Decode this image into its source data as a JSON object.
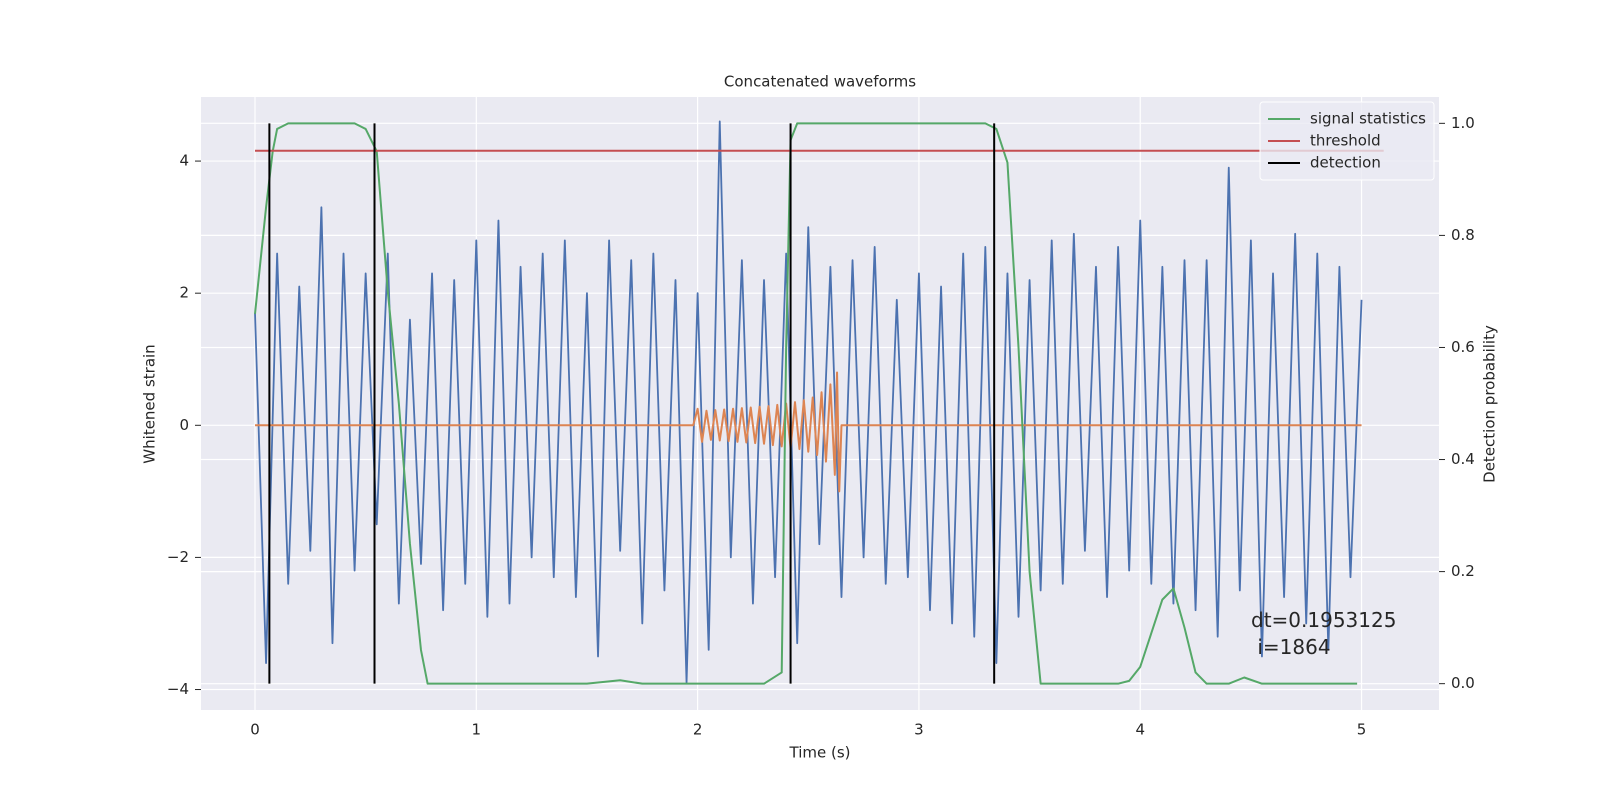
{
  "chart_data": {
    "type": "line",
    "title": "Concatenated waveforms",
    "xlabel": "Time (s)",
    "ylabel": "Whitened strain",
    "y2label": "Detection probability",
    "xlim": [
      -0.244,
      5.35
    ],
    "ylim": [
      -4.31,
      4.97
    ],
    "y2lim": [
      -0.047,
      1.047
    ],
    "xticks": [
      0,
      1,
      2,
      3,
      4,
      5
    ],
    "yticks": [
      {
        "value": -4,
        "label": "−4"
      },
      {
        "value": -2,
        "label": "−2"
      },
      0,
      2,
      4
    ],
    "y2ticks": [
      {
        "value": 0,
        "label": "0.0"
      },
      0.2,
      0.4,
      0.6,
      0.8,
      {
        "value": 1,
        "label": "1.0"
      }
    ],
    "grid": true,
    "legend": "upper right",
    "annotation": [
      "dt=0.1953125",
      " i=1864"
    ],
    "series": [
      {
        "color": "#4c72b0",
        "axis": "y",
        "x": [
          0,
          0.05,
          0.1,
          0.15,
          0.2,
          0.25,
          0.3,
          0.35,
          0.4,
          0.45,
          0.5,
          0.55,
          0.6,
          0.65,
          0.7,
          0.75,
          0.8,
          0.85,
          0.9,
          0.95,
          1,
          1.05,
          1.1,
          1.15,
          1.2,
          1.25,
          1.3,
          1.35,
          1.4,
          1.45,
          1.5,
          1.55,
          1.6,
          1.65,
          1.7,
          1.75,
          1.8,
          1.85,
          1.9,
          1.95,
          2,
          2.05,
          2.1,
          2.15,
          2.2,
          2.25,
          2.3,
          2.35,
          2.4,
          2.45,
          2.5,
          2.55,
          2.6,
          2.65,
          2.7,
          2.75,
          2.8,
          2.85,
          2.9,
          2.95,
          3,
          3.05,
          3.1,
          3.15,
          3.2,
          3.25,
          3.3,
          3.35,
          3.4,
          3.45,
          3.5,
          3.55,
          3.6,
          3.65,
          3.7,
          3.75,
          3.8,
          3.85,
          3.9,
          3.95,
          4,
          4.05,
          4.1,
          4.15,
          4.2,
          4.25,
          4.3,
          4.35,
          4.4,
          4.45,
          4.5,
          4.55,
          4.6,
          4.65,
          4.7,
          4.75,
          4.8,
          4.85,
          4.9,
          4.95,
          5
        ],
        "values": [
          1.7,
          -3.6,
          2.6,
          -2.4,
          2.1,
          -1.9,
          3.3,
          -3.3,
          2.6,
          -2.2,
          2.3,
          -1.5,
          2.6,
          -2.7,
          1.6,
          -2.1,
          2.3,
          -2.8,
          2.2,
          -2.4,
          2.8,
          -2.9,
          3.1,
          -2.7,
          2.4,
          -2.0,
          2.6,
          -2.3,
          2.8,
          -2.6,
          2.0,
          -3.5,
          2.8,
          -1.9,
          2.5,
          -3.0,
          2.6,
          -2.5,
          2.2,
          -3.9,
          2.0,
          -3.4,
          4.6,
          -2.0,
          2.5,
          -2.7,
          2.2,
          -2.3,
          2.6,
          -3.3,
          3.0,
          -1.8,
          2.4,
          -2.6,
          2.5,
          -2.0,
          2.7,
          -2.4,
          1.9,
          -2.3,
          2.3,
          -2.8,
          2.1,
          -3.0,
          2.6,
          -3.2,
          2.7,
          -3.6,
          2.3,
          -2.9,
          2.2,
          -2.5,
          2.8,
          -2.4,
          2.9,
          -1.9,
          2.4,
          -2.6,
          2.7,
          -2.2,
          3.1,
          -2.4,
          2.4,
          -2.7,
          2.5,
          -2.8,
          2.5,
          -3.2,
          3.9,
          -2.5,
          2.8,
          -3.5,
          2.3,
          -2.6,
          2.9,
          -3.0,
          2.6,
          -3.4,
          2.4,
          -2.3,
          1.9
        ]
      },
      {
        "color": "#dd8452",
        "axis": "y",
        "x": [
          0,
          1.98,
          2,
          2.02,
          2.04,
          2.06,
          2.08,
          2.1,
          2.12,
          2.14,
          2.16,
          2.18,
          2.2,
          2.22,
          2.24,
          2.26,
          2.28,
          2.3,
          2.32,
          2.34,
          2.36,
          2.38,
          2.4,
          2.42,
          2.44,
          2.46,
          2.48,
          2.5,
          2.52,
          2.54,
          2.56,
          2.58,
          2.6,
          2.62,
          2.63,
          2.64,
          2.65,
          5
        ],
        "values": [
          0,
          0,
          0.25,
          -0.25,
          0.22,
          -0.22,
          0.23,
          -0.23,
          0.24,
          -0.24,
          0.25,
          -0.25,
          0.26,
          -0.26,
          0.27,
          -0.27,
          0.28,
          -0.28,
          0.29,
          -0.3,
          0.31,
          -0.32,
          0.33,
          -0.34,
          0.35,
          -0.36,
          0.38,
          -0.4,
          0.42,
          -0.45,
          0.5,
          -0.55,
          0.62,
          -0.75,
          0.8,
          -1.0,
          0,
          0
        ]
      },
      {
        "name": "signal statistics",
        "color": "#55a868",
        "axis": "y2",
        "x": [
          0,
          0.05,
          0.08,
          0.1,
          0.15,
          0.2,
          0.45,
          0.5,
          0.55,
          0.6,
          0.65,
          0.7,
          0.75,
          0.78,
          0.85,
          1.5,
          1.65,
          1.75,
          2.3,
          2.38,
          2.4,
          2.42,
          2.45,
          2.5,
          3.3,
          3.35,
          3.4,
          3.45,
          3.5,
          3.55,
          3.65,
          3.9,
          3.95,
          4,
          4.05,
          4.1,
          4.15,
          4.2,
          4.25,
          4.3,
          4.4,
          4.47,
          4.55,
          4.98
        ],
        "values": [
          0.66,
          0.85,
          0.95,
          0.99,
          1.0,
          1.0,
          1.0,
          0.99,
          0.95,
          0.7,
          0.5,
          0.25,
          0.06,
          0.0,
          0.0,
          0.0,
          0.006,
          0.0,
          0.0,
          0.02,
          0.6,
          0.97,
          1.0,
          1.0,
          1.0,
          0.99,
          0.93,
          0.6,
          0.2,
          0.0,
          0.0,
          0.0,
          0.005,
          0.03,
          0.09,
          0.15,
          0.17,
          0.1,
          0.02,
          0.0,
          0.0,
          0.011,
          0.0,
          0.0
        ]
      },
      {
        "name": "threshold",
        "color": "#c44e52",
        "axis": "y2",
        "x": [
          0,
          5.1
        ],
        "values": [
          0.951,
          0.951
        ]
      },
      {
        "name": "detection",
        "color": "#000000",
        "axis": "y2",
        "kind": "vlines",
        "x": [
          0.065,
          0.54,
          2.42,
          3.34
        ],
        "ymin": 0,
        "ymax": 1
      }
    ]
  }
}
